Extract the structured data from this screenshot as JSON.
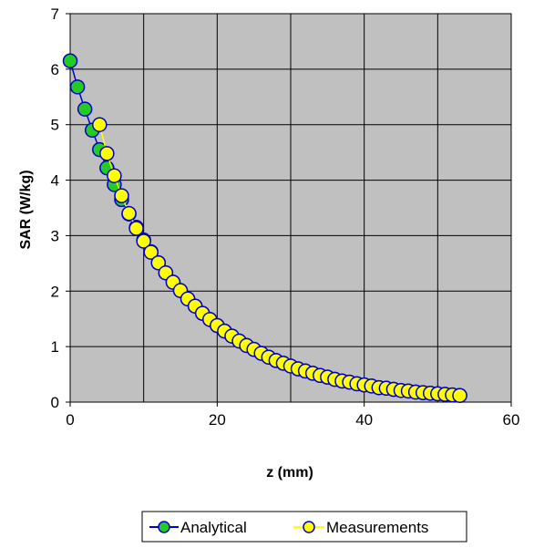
{
  "chart_data": {
    "type": "scatter",
    "title": "",
    "xlabel": "z (mm)",
    "ylabel": "SAR (W/kg)",
    "xlim": [
      0,
      60
    ],
    "ylim": [
      0,
      7
    ],
    "xticks": [
      0,
      20,
      40,
      60
    ],
    "yticks": [
      0,
      1,
      2,
      3,
      4,
      5,
      6,
      7
    ],
    "grid": true,
    "legend_position": "bottom",
    "plot_background": "#c0c0c0",
    "series": [
      {
        "name": "Analytical",
        "line_color": "#0000cc",
        "marker_color": "#22cc22",
        "x": [
          0,
          1,
          2,
          3,
          4,
          5,
          6,
          7,
          8,
          9,
          10,
          11,
          12,
          13,
          14,
          15,
          16,
          17,
          18,
          19,
          20,
          21,
          22,
          23,
          24,
          25,
          26,
          27,
          28,
          29,
          30,
          31,
          32,
          33,
          34,
          35,
          36,
          37,
          38,
          39,
          40,
          41,
          42,
          43,
          44,
          45,
          46,
          47,
          48,
          49,
          50,
          51,
          52,
          53
        ],
        "y": [
          6.15,
          5.68,
          5.28,
          4.9,
          4.55,
          4.22,
          3.92,
          3.65,
          3.39,
          3.15,
          2.92,
          2.71,
          2.51,
          2.33,
          2.16,
          2.01,
          1.86,
          1.73,
          1.6,
          1.49,
          1.38,
          1.28,
          1.19,
          1.1,
          1.02,
          0.95,
          0.88,
          0.81,
          0.75,
          0.7,
          0.65,
          0.6,
          0.56,
          0.52,
          0.48,
          0.45,
          0.41,
          0.38,
          0.36,
          0.33,
          0.31,
          0.29,
          0.26,
          0.25,
          0.23,
          0.21,
          0.2,
          0.18,
          0.17,
          0.16,
          0.15,
          0.14,
          0.13,
          0.12
        ]
      },
      {
        "name": "Measurements",
        "line_color": "#ffff00",
        "marker_color": "#ffff00",
        "x": [
          4,
          5,
          6,
          7,
          8,
          9,
          10,
          11,
          12,
          13,
          14,
          15,
          16,
          17,
          18,
          19,
          20,
          21,
          22,
          23,
          24,
          25,
          26,
          27,
          28,
          29,
          30,
          31,
          32,
          33,
          34,
          35,
          36,
          37,
          38,
          39,
          40,
          41,
          42,
          43,
          44,
          45,
          46,
          47,
          48,
          49,
          50,
          51,
          52,
          53
        ],
        "y": [
          5.0,
          4.48,
          4.08,
          3.72,
          3.4,
          3.13,
          2.9,
          2.7,
          2.51,
          2.33,
          2.16,
          2.01,
          1.86,
          1.73,
          1.6,
          1.49,
          1.38,
          1.28,
          1.19,
          1.1,
          1.02,
          0.95,
          0.88,
          0.81,
          0.75,
          0.7,
          0.65,
          0.6,
          0.56,
          0.52,
          0.48,
          0.45,
          0.41,
          0.38,
          0.36,
          0.33,
          0.31,
          0.29,
          0.26,
          0.25,
          0.23,
          0.21,
          0.2,
          0.18,
          0.17,
          0.16,
          0.15,
          0.14,
          0.13,
          0.12
        ]
      }
    ]
  }
}
